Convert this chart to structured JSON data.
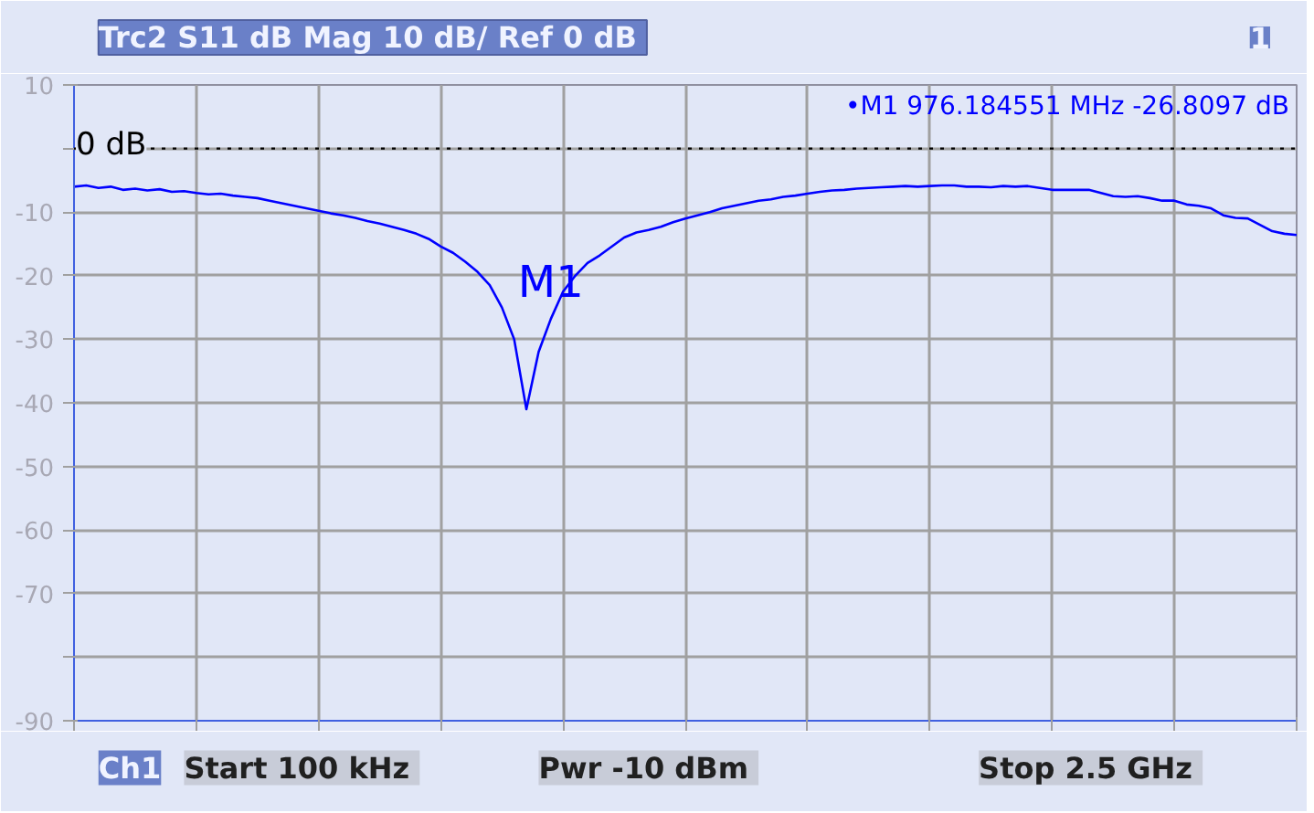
{
  "chart_data": {
    "type": "line",
    "title": "Trc2 S11 dB Mag  10 dB/ Ref 0 dB",
    "categories": [
      null,
      null,
      null,
      null,
      null,
      null,
      null,
      null,
      null,
      null,
      null,
      null,
      null,
      null,
      null,
      null,
      null,
      null,
      null,
      null,
      null,
      null,
      null,
      null,
      null,
      null,
      null,
      null,
      null,
      null,
      null,
      null,
      null,
      null,
      null,
      null,
      null,
      null,
      null,
      null,
      null,
      null,
      null,
      null,
      null,
      null,
      null,
      null,
      null,
      null,
      null,
      null,
      null,
      null,
      null,
      null,
      null,
      null,
      null,
      null,
      null,
      null,
      null,
      null,
      null,
      null,
      null,
      null,
      null,
      null,
      null,
      null,
      null,
      null,
      null,
      null,
      null,
      null,
      null,
      null,
      null,
      null,
      null,
      null,
      null,
      null,
      null,
      null,
      null,
      null,
      null,
      null,
      null,
      null,
      null,
      null,
      null,
      null,
      null,
      null,
      null
    ],
    "series": [
      {
        "color": "#0000ff",
        "values": [
          -6,
          -5.8,
          -6.2,
          -6,
          -6.5,
          -6.3,
          -6.6,
          -6.4,
          -6.8,
          -6.7,
          -7,
          -7.2,
          -7.1,
          -7.4,
          -7.6,
          -7.8,
          -8.2,
          -8.6,
          -9,
          -9.4,
          -9.8,
          -10.2,
          -10.5,
          -10.9,
          -11.4,
          -11.8,
          -12.3,
          -12.8,
          -13.4,
          -14.2,
          -15.4,
          -16.4,
          -17.8,
          -19.4,
          -21.5,
          -25,
          -30,
          -41,
          -32,
          -26.8,
          -22.5,
          -20,
          -18,
          -16.8,
          -15.4,
          -14,
          -13.2,
          -12.8,
          -12.3,
          -11.6,
          -11,
          -10.5,
          -10,
          -9.4,
          -9,
          -8.6,
          -8.2,
          -8,
          -7.6,
          -7.4,
          -7.1,
          -6.8,
          -6.6,
          -6.5,
          -6.3,
          -6.2,
          -6.1,
          -6,
          -5.9,
          -6,
          -5.9,
          -5.8,
          -5.8,
          -6,
          -6,
          -6.1,
          -5.9,
          -6,
          -5.9,
          -6.2,
          -6.5,
          -6.5,
          -6.5,
          -6.5,
          -7,
          -7.5,
          -7.6,
          -7.5,
          -7.8,
          -8.2,
          -8.2,
          -8.8,
          -9,
          -9.4,
          -10.5,
          -10.9,
          -11,
          -12,
          -13,
          -13.4,
          -13.6
        ]
      }
    ],
    "ylim": [
      -90,
      10
    ],
    "yticks": [
      10,
      {
        "value": 0,
        "label": null
      },
      -10,
      -20,
      -30,
      -40,
      -50,
      -60,
      -70,
      {
        "value": -80,
        "label": null
      },
      -90
    ],
    "tick_labels": "y",
    "grid": true,
    "marker": "none",
    "line_style": "solid",
    "ref_lines": [
      {
        "axis": "y",
        "value": 0,
        "label": "0 dB",
        "color": "#000000",
        "line_style": "dotted"
      }
    ],
    "annotations": [
      "•M1 976.184551 MHz -26.8097 dB",
      "1",
      "Ch1",
      "Start  100 kHz",
      "Pwr  -10 dBm",
      "Stop  2.5 GHz",
      {
        "text": "M1",
        "y": -26.8097
      }
    ]
  }
}
